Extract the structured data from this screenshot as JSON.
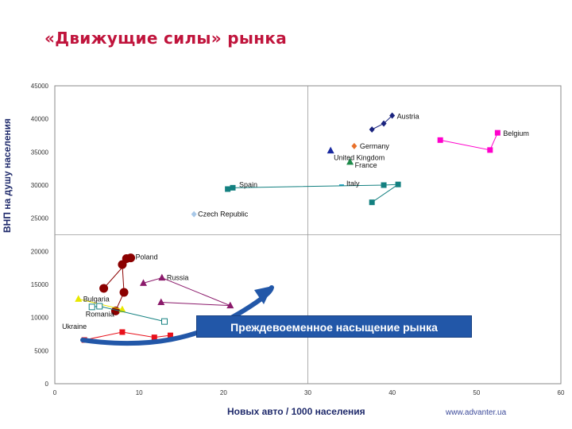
{
  "title": "«Движущие силы» рынка",
  "footer": "www.advanter.ua",
  "callout": "Преждевоеменное насыщение рынка",
  "colors": {
    "title": "#c0143c",
    "callout_bg": "#2257a8",
    "arrow": "#2257a8"
  },
  "chart_data": {
    "type": "scatter",
    "xlabel": "Новых авто / 1000 населения",
    "ylabel": "ВНП на душу населения",
    "xlim": [
      0,
      60
    ],
    "ylim": [
      0,
      45000
    ],
    "xticks": [
      0,
      10,
      20,
      30,
      40,
      50,
      60
    ],
    "yticks": [
      0,
      5000,
      10000,
      15000,
      20000,
      25000,
      30000,
      35000,
      40000,
      45000
    ],
    "grid": "center lines only",
    "series": [
      {
        "name": "Austria",
        "color": "#1a237e",
        "marker": "diamond",
        "x": [
          37.6,
          39.0,
          40.0
        ],
        "y": [
          38400,
          39300,
          40500
        ]
      },
      {
        "name": "Belgium",
        "color": "#ff00cc",
        "marker": "square",
        "x": [
          45.7,
          51.6,
          52.5
        ],
        "y": [
          36800,
          35300,
          37900
        ]
      },
      {
        "name": "Germany",
        "color": "#e8702a",
        "marker": "diamond",
        "x": [
          35.5
        ],
        "y": [
          35900
        ]
      },
      {
        "name": "United Kingdom",
        "color": "#1a2aa0",
        "marker": "triangle",
        "x": [
          32.7
        ],
        "y": [
          35200
        ]
      },
      {
        "name": "France",
        "color": "#1e8a4a",
        "marker": "triangle",
        "x": [
          35.0
        ],
        "y": [
          33500
        ]
      },
      {
        "name": "Italy",
        "color": "#2aa8c8",
        "marker": "dash",
        "x": [
          34.0
        ],
        "y": [
          30000
        ]
      },
      {
        "name": "Spain",
        "color": "#138080",
        "marker": "square",
        "x": [
          20.5,
          21.1,
          39.0,
          40.7,
          37.6
        ],
        "y": [
          29400,
          29600,
          30000,
          30100,
          27400
        ]
      },
      {
        "name": "Czech Republic",
        "color": "#a8c8e8",
        "marker": "diamond",
        "x": [
          16.5
        ],
        "y": [
          25600
        ]
      },
      {
        "name": "Poland",
        "color": "#8b0000",
        "marker": "circle",
        "x": [
          7.2,
          8.2,
          8.0,
          8.5,
          9.0,
          5.8
        ],
        "y": [
          11000,
          13800,
          18000,
          18900,
          19000,
          14400
        ]
      },
      {
        "name": "Russia",
        "color": "#8b1a6b",
        "marker": "triangle",
        "x": [
          10.5,
          12.7,
          20.8,
          12.6
        ],
        "y": [
          15200,
          16000,
          11800,
          12300
        ]
      },
      {
        "name": "Bulgaria",
        "color": "#e8e800",
        "marker": "triangle",
        "x": [
          2.8,
          8.0
        ],
        "y": [
          12800,
          11200
        ]
      },
      {
        "name": "Romania",
        "color": "#138080",
        "marker": "open-square",
        "x": [
          4.4,
          5.3,
          13.0
        ],
        "y": [
          11600,
          11700,
          9400
        ]
      },
      {
        "name": "Ukraine",
        "color": "#e8101a",
        "marker": "square",
        "x": [
          3.5,
          8.0,
          11.8,
          13.7
        ],
        "y": [
          6600,
          7800,
          7000,
          7300
        ]
      }
    ]
  }
}
